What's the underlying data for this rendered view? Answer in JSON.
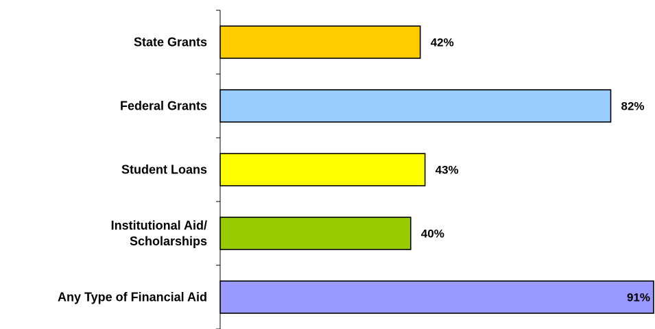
{
  "chart_data": {
    "type": "bar",
    "orientation": "horizontal",
    "categories": [
      "State Grants",
      "Federal Grants",
      "Student Loans",
      "Institutional Aid/\nScholarships",
      "Any Type of Financial Aid"
    ],
    "values": [
      42,
      82,
      43,
      40,
      91
    ],
    "value_labels": [
      "42%",
      "82%",
      "43%",
      "40%",
      "91%"
    ],
    "colors": [
      "#FFCC00",
      "#99CCFF",
      "#FFFF00",
      "#99CC00",
      "#9999FF"
    ],
    "xlim": [
      0,
      91
    ],
    "grid": false,
    "legend": "none",
    "title": "",
    "xlabel": "",
    "ylabel": ""
  }
}
